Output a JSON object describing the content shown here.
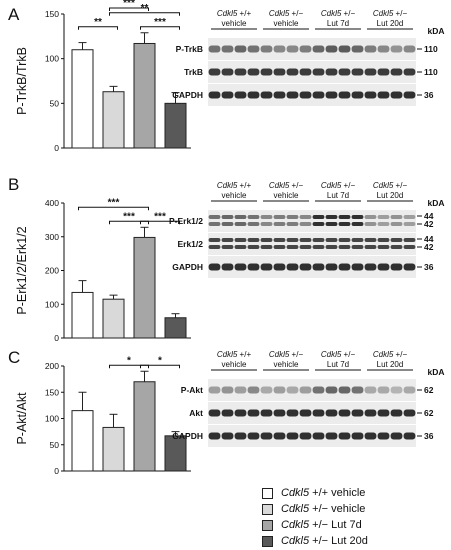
{
  "legend": {
    "items": [
      {
        "italic": "Cdkl5",
        "rest": " +/+ vehicle",
        "color": "#ffffff"
      },
      {
        "italic": "Cdkl5",
        "rest": " +/− vehicle",
        "color": "#d9d9d9"
      },
      {
        "italic": "Cdkl5",
        "rest": " +/− Lut 7d",
        "color": "#a6a6a6"
      },
      {
        "italic": "Cdkl5",
        "rest": " +/− Lut 20d",
        "color": "#595959"
      }
    ]
  },
  "blot_groups": [
    {
      "italic": "Cdkl5",
      "rest": " +/+",
      "line2": "vehicle"
    },
    {
      "italic": "Cdkl5",
      "rest": " +/−",
      "line2": "vehicle"
    },
    {
      "italic": "Cdkl5",
      "rest": " +/−",
      "line2": "Lut 7d"
    },
    {
      "italic": "Cdkl5",
      "rest": " +/−",
      "line2": "Lut 20d"
    }
  ],
  "kda_label": "kDA",
  "chart_data": [
    {
      "panel": "A",
      "type": "bar",
      "ylabel": "P-TrkB/TrkB",
      "ylim": [
        0,
        150
      ],
      "yticks": [
        0,
        50,
        100,
        150
      ],
      "categories": [
        "Cdkl5 +/+ vehicle",
        "Cdkl5 +/− vehicle",
        "Cdkl5 +/− Lut 7d",
        "Cdkl5 +/− Lut 20d"
      ],
      "values": [
        110,
        63,
        117,
        50
      ],
      "errors": [
        8,
        6,
        12,
        12
      ],
      "colors": [
        "#ffffff",
        "#d9d9d9",
        "#a6a6a6",
        "#595959"
      ],
      "significance": [
        {
          "from": 0,
          "to": 1,
          "label": "**",
          "level": 0
        },
        {
          "from": 2,
          "to": 3,
          "label": "***",
          "level": 0
        },
        {
          "from": 1,
          "to": 3,
          "label": "**",
          "level": 1
        },
        {
          "from": 1,
          "to": 2,
          "label": "***",
          "level": 2
        }
      ],
      "blot": {
        "bands": [
          {
            "label": "P-TrkB",
            "mw": "110",
            "strength": [
              0.55,
              0.55,
              0.6,
              0.55,
              0.5,
              0.45,
              0.45,
              0.5,
              0.6,
              0.65,
              0.65,
              0.6,
              0.5,
              0.45,
              0.4,
              0.45
            ]
          },
          {
            "label": "TrkB",
            "mw": "110",
            "strength": [
              0.8,
              0.8,
              0.8,
              0.8,
              0.8,
              0.8,
              0.8,
              0.8,
              0.8,
              0.8,
              0.8,
              0.8,
              0.8,
              0.8,
              0.8,
              0.8
            ]
          },
          {
            "label": "GAPDH",
            "mw": "36",
            "strength": [
              0.85,
              0.85,
              0.85,
              0.85,
              0.85,
              0.85,
              0.85,
              0.85,
              0.85,
              0.85,
              0.85,
              0.85,
              0.85,
              0.85,
              0.85,
              0.85
            ]
          }
        ]
      }
    },
    {
      "panel": "B",
      "type": "bar",
      "ylabel": "P-Erk1/2/Erk1/2",
      "ylim": [
        0,
        400
      ],
      "yticks": [
        0,
        100,
        200,
        300,
        400
      ],
      "categories": [
        "Cdkl5 +/+ vehicle",
        "Cdkl5 +/− vehicle",
        "Cdkl5 +/− Lut 7d",
        "Cdkl5 +/− Lut 20d"
      ],
      "values": [
        135,
        115,
        298,
        60
      ],
      "errors": [
        35,
        12,
        30,
        12
      ],
      "colors": [
        "#ffffff",
        "#d9d9d9",
        "#a6a6a6",
        "#595959"
      ],
      "significance": [
        {
          "from": 1,
          "to": 2,
          "label": "***",
          "level": 0
        },
        {
          "from": 2,
          "to": 3,
          "label": "***",
          "level": 0
        },
        {
          "from": 0,
          "to": 2,
          "label": "***",
          "level": 1
        }
      ],
      "blot": {
        "bands": [
          {
            "label": "P-Erk1/2",
            "mw": "44\n42",
            "double": true,
            "strength": [
              0.55,
              0.6,
              0.6,
              0.55,
              0.45,
              0.5,
              0.5,
              0.45,
              0.85,
              0.85,
              0.85,
              0.85,
              0.4,
              0.35,
              0.4,
              0.35
            ]
          },
          {
            "label": "Erk1/2",
            "mw": "44\n42",
            "double": true,
            "strength": [
              0.75,
              0.75,
              0.75,
              0.75,
              0.75,
              0.75,
              0.75,
              0.75,
              0.75,
              0.75,
              0.75,
              0.75,
              0.75,
              0.75,
              0.75,
              0.75
            ]
          },
          {
            "label": "GAPDH",
            "mw": "36",
            "strength": [
              0.85,
              0.85,
              0.85,
              0.85,
              0.85,
              0.85,
              0.85,
              0.85,
              0.85,
              0.85,
              0.85,
              0.85,
              0.85,
              0.85,
              0.85,
              0.85
            ]
          }
        ]
      }
    },
    {
      "panel": "C",
      "type": "bar",
      "ylabel": "P-Akt/Akt",
      "ylim": [
        0,
        200
      ],
      "yticks": [
        0,
        50,
        100,
        150,
        200
      ],
      "categories": [
        "Cdkl5 +/+ vehicle",
        "Cdkl5 +/− vehicle",
        "Cdkl5 +/− Lut 7d",
        "Cdkl5 +/− Lut 20d"
      ],
      "values": [
        115,
        83,
        170,
        67
      ],
      "errors": [
        35,
        25,
        20,
        8
      ],
      "colors": [
        "#ffffff",
        "#d9d9d9",
        "#a6a6a6",
        "#595959"
      ],
      "significance": [
        {
          "from": 1,
          "to": 2,
          "label": "*",
          "level": 0
        },
        {
          "from": 2,
          "to": 3,
          "label": "*",
          "level": 0
        }
      ],
      "blot": {
        "bands": [
          {
            "label": "P-Akt",
            "mw": "62",
            "strength": [
              0.35,
              0.4,
              0.35,
              0.45,
              0.3,
              0.35,
              0.3,
              0.35,
              0.55,
              0.6,
              0.6,
              0.55,
              0.3,
              0.3,
              0.25,
              0.3
            ]
          },
          {
            "label": "Akt",
            "mw": "62",
            "strength": [
              0.85,
              0.85,
              0.85,
              0.85,
              0.85,
              0.85,
              0.85,
              0.85,
              0.85,
              0.85,
              0.85,
              0.85,
              0.85,
              0.85,
              0.85,
              0.85
            ]
          },
          {
            "label": "GAPDH",
            "mw": "36",
            "strength": [
              0.85,
              0.85,
              0.85,
              0.85,
              0.85,
              0.85,
              0.85,
              0.85,
              0.85,
              0.85,
              0.85,
              0.85,
              0.85,
              0.85,
              0.85,
              0.85
            ]
          }
        ]
      }
    }
  ]
}
